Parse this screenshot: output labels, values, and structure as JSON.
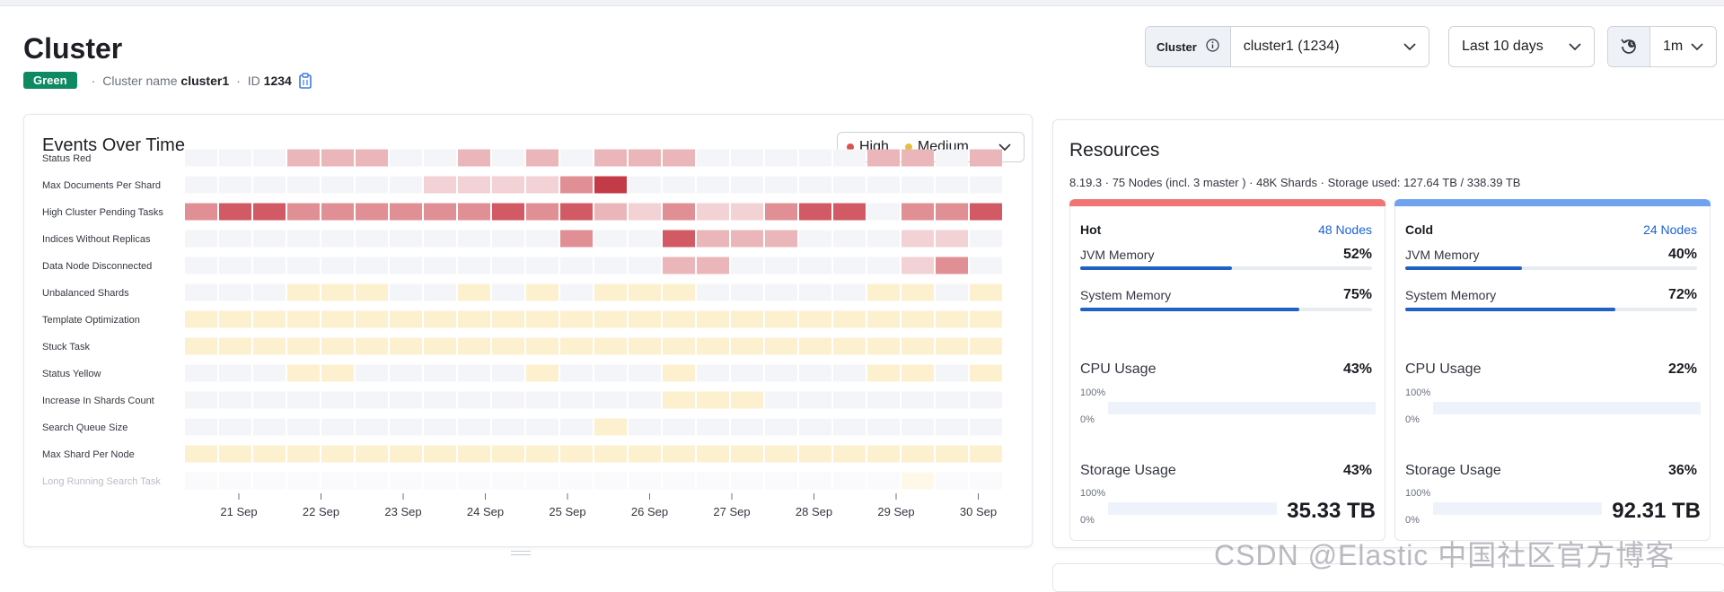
{
  "page": {
    "title": "Cluster",
    "status": "Green",
    "cluster_name_label": "Cluster name",
    "cluster_name": "cluster1",
    "id_label": "ID",
    "id_value": "1234"
  },
  "controls": {
    "cluster_prefix": "Cluster",
    "cluster_value": "cluster1 (1234)",
    "date_range": "Last 10 days",
    "refresh_interval": "1m"
  },
  "events": {
    "title": "Events Over Time",
    "legend": [
      {
        "label": "High",
        "color": "#d9534f"
      },
      {
        "label": "Medium",
        "color": "#e2c13f"
      }
    ],
    "colors": {
      "empty": "#f4f5f8",
      "red": [
        "#f2d2d4",
        "#ebb6b9",
        "#e08f95",
        "#d15a64",
        "#c23b47"
      ],
      "yellow": [
        "#fcf0cf",
        "#fbe6b2"
      ]
    },
    "date_ticks": [
      "21 Sep",
      "22 Sep",
      "23 Sep",
      "24 Sep",
      "25 Sep",
      "26 Sep",
      "27 Sep",
      "28 Sep",
      "29 Sep",
      "30 Sep"
    ],
    "rows": [
      {
        "label": "Status Red",
        "type": "red",
        "cells": [
          0,
          0,
          0,
          2,
          2,
          2,
          0,
          0,
          2,
          0,
          2,
          0,
          2,
          2,
          2,
          0,
          0,
          0,
          0,
          0,
          2,
          2,
          0,
          2
        ]
      },
      {
        "label": "Max Documents Per Shard",
        "type": "red",
        "cells": [
          0,
          0,
          0,
          0,
          0,
          0,
          0,
          1,
          1,
          1,
          1,
          3,
          5,
          0,
          0,
          0,
          0,
          0,
          0,
          0,
          0,
          0,
          0,
          0
        ]
      },
      {
        "label": "High Cluster Pending Tasks",
        "type": "red",
        "cells": [
          3,
          4,
          4,
          3,
          3,
          3,
          3,
          3,
          3,
          4,
          3,
          4,
          2,
          1,
          3,
          1,
          1,
          3,
          4,
          4,
          0,
          3,
          3,
          4
        ]
      },
      {
        "label": "Indices Without Replicas",
        "type": "red",
        "cells": [
          0,
          0,
          0,
          0,
          0,
          0,
          0,
          0,
          0,
          0,
          0,
          3,
          0,
          0,
          4,
          2,
          2,
          2,
          0,
          0,
          0,
          1,
          1,
          0
        ]
      },
      {
        "label": "Data Node Disconnected",
        "type": "red",
        "cells": [
          0,
          0,
          0,
          0,
          0,
          0,
          0,
          0,
          0,
          0,
          0,
          0,
          0,
          0,
          2,
          2,
          0,
          0,
          0,
          0,
          0,
          1,
          3,
          0
        ]
      },
      {
        "label": "Unbalanced Shards",
        "type": "yellow",
        "cells": [
          0,
          0,
          0,
          1,
          1,
          1,
          0,
          0,
          1,
          0,
          1,
          0,
          1,
          1,
          1,
          0,
          0,
          0,
          0,
          0,
          1,
          1,
          0,
          1
        ]
      },
      {
        "label": "Template Optimization",
        "type": "yellow",
        "cells": [
          1,
          1,
          1,
          1,
          1,
          1,
          1,
          1,
          1,
          1,
          1,
          1,
          1,
          1,
          1,
          1,
          1,
          1,
          1,
          1,
          1,
          1,
          1,
          1
        ]
      },
      {
        "label": "Stuck Task",
        "type": "yellow",
        "cells": [
          1,
          1,
          1,
          1,
          1,
          1,
          1,
          1,
          1,
          1,
          1,
          1,
          1,
          1,
          1,
          1,
          1,
          1,
          1,
          1,
          1,
          1,
          1,
          1
        ]
      },
      {
        "label": "Status Yellow",
        "type": "yellow",
        "cells": [
          0,
          0,
          0,
          1,
          1,
          0,
          0,
          0,
          0,
          0,
          1,
          0,
          0,
          0,
          1,
          0,
          0,
          0,
          0,
          0,
          1,
          1,
          0,
          1
        ]
      },
      {
        "label": "Increase In Shards Count",
        "type": "yellow",
        "cells": [
          0,
          0,
          0,
          0,
          0,
          0,
          0,
          0,
          0,
          0,
          0,
          0,
          0,
          0,
          1,
          1,
          1,
          0,
          0,
          0,
          0,
          0,
          0,
          0
        ]
      },
      {
        "label": "Search Queue Size",
        "type": "yellow",
        "cells": [
          0,
          0,
          0,
          0,
          0,
          0,
          0,
          0,
          0,
          0,
          0,
          0,
          1,
          0,
          0,
          0,
          0,
          0,
          0,
          0,
          0,
          0,
          0,
          0
        ]
      },
      {
        "label": "Max Shard Per Node",
        "type": "yellow",
        "cells": [
          1,
          1,
          1,
          1,
          1,
          1,
          1,
          1,
          1,
          1,
          1,
          1,
          1,
          1,
          1,
          1,
          1,
          1,
          1,
          1,
          1,
          1,
          1,
          1
        ]
      },
      {
        "label": "Long Running Search Task",
        "type": "yellow",
        "cells": [
          0,
          0,
          0,
          0,
          0,
          0,
          0,
          0,
          0,
          0,
          0,
          0,
          0,
          0,
          0,
          0,
          0,
          0,
          0,
          0,
          0,
          1,
          0,
          0
        ]
      }
    ]
  },
  "resources": {
    "title": "Resources",
    "summary": "8.19.3 · 75 Nodes (incl. 3 master ) · 48K Shards · Storage used: 127.64 TB / 338.39 TB",
    "tiers": [
      {
        "name": "Hot",
        "nodes": "48 Nodes",
        "color": "#f07575",
        "jvm_label": "JVM Memory",
        "jvm": "52%",
        "jvm_frac": 0.52,
        "sys_label": "System Memory",
        "sys": "75%",
        "sys_frac": 0.75,
        "cpu_label": "CPU Usage",
        "cpu": "43%",
        "storage_label": "Storage Usage",
        "storage": "43%",
        "axis_max": "100%",
        "axis_min": "0%",
        "total": "35.33 TB"
      },
      {
        "name": "Cold",
        "nodes": "24 Nodes",
        "color": "#6fa3ef",
        "jvm_label": "JVM Memory",
        "jvm": "40%",
        "jvm_frac": 0.4,
        "sys_label": "System Memory",
        "sys": "72%",
        "sys_frac": 0.72,
        "cpu_label": "CPU Usage",
        "cpu": "22%",
        "storage_label": "Storage Usage",
        "storage": "36%",
        "axis_max": "100%",
        "axis_min": "0%",
        "total": "92.31 TB"
      }
    ]
  },
  "watermark": "CSDN @Elastic 中国社区官方博客"
}
